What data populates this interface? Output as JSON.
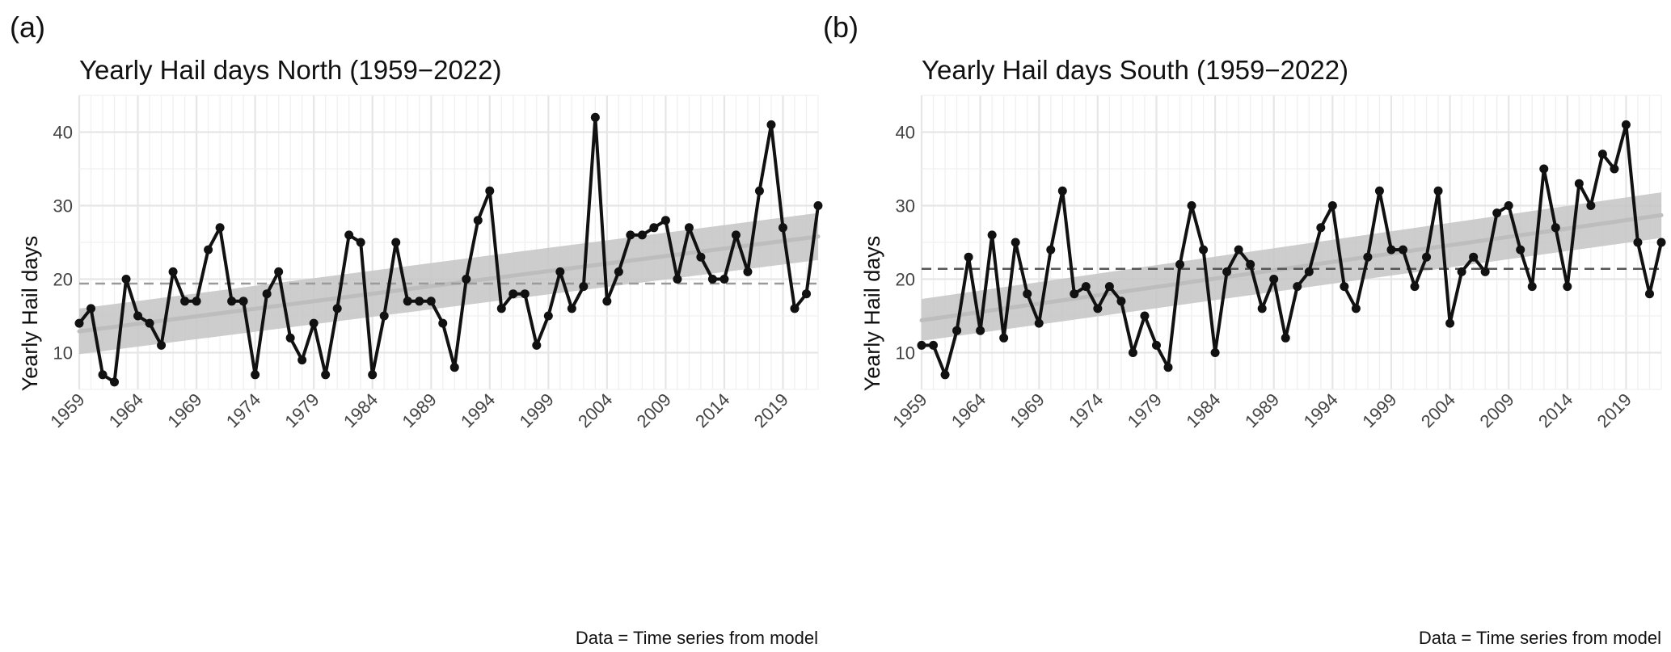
{
  "chart_data": [
    {
      "type": "line",
      "panel_label": "(a)",
      "title": "Yearly Hail days North (1959−2022)",
      "xlabel": "",
      "ylabel": "Yearly Hail days",
      "caption": "Data = Time series from model",
      "xlim": [
        1959,
        2022
      ],
      "ylim": [
        5,
        45
      ],
      "x_ticks": [
        1959,
        1964,
        1969,
        1974,
        1979,
        1984,
        1989,
        1994,
        1999,
        2004,
        2009,
        2014,
        2019
      ],
      "y_ticks": [
        10,
        20,
        30,
        40
      ],
      "x": [
        1959,
        1960,
        1961,
        1962,
        1963,
        1964,
        1965,
        1966,
        1967,
        1968,
        1969,
        1970,
        1971,
        1972,
        1973,
        1974,
        1975,
        1976,
        1977,
        1978,
        1979,
        1980,
        1981,
        1982,
        1983,
        1984,
        1985,
        1986,
        1987,
        1988,
        1989,
        1990,
        1991,
        1992,
        1993,
        1994,
        1995,
        1996,
        1997,
        1998,
        1999,
        2000,
        2001,
        2002,
        2003,
        2004,
        2005,
        2006,
        2007,
        2008,
        2009,
        2010,
        2011,
        2012,
        2013,
        2014,
        2015,
        2016,
        2017,
        2018,
        2019,
        2020,
        2021,
        2022
      ],
      "series": [
        {
          "name": "Yearly Hail days",
          "values": [
            14,
            16,
            7,
            6,
            20,
            15,
            14,
            11,
            21,
            17,
            17,
            24,
            27,
            17,
            17,
            7,
            18,
            21,
            12,
            9,
            14,
            7,
            16,
            26,
            25,
            7,
            15,
            25,
            17,
            17,
            17,
            14,
            8,
            20,
            28,
            32,
            16,
            18,
            18,
            11,
            15,
            21,
            16,
            19,
            42,
            17,
            21,
            26,
            26,
            27,
            28,
            20,
            27,
            23,
            20,
            20,
            26,
            21,
            32,
            41,
            27,
            16,
            18,
            30
          ]
        }
      ],
      "mean_line": 19.4,
      "trend": {
        "start": [
          1959,
          12.9
        ],
        "end": [
          2022,
          25.8
        ]
      },
      "confidence_band": {
        "start": [
          9.8,
          16.0
        ],
        "end": [
          22.6,
          29.0
        ]
      },
      "colors": {
        "line": "#111111",
        "trend": "#bdbdbd",
        "band": "#c4c4c4",
        "mean": "#9a9a9a"
      }
    },
    {
      "type": "line",
      "panel_label": "(b)",
      "title": "Yearly Hail days South (1959−2022)",
      "xlabel": "",
      "ylabel": "Yearly Hail days",
      "caption": "Data = Time series from model",
      "xlim": [
        1959,
        2022
      ],
      "ylim": [
        5,
        45
      ],
      "x_ticks": [
        1959,
        1964,
        1969,
        1974,
        1979,
        1984,
        1989,
        1994,
        1999,
        2004,
        2009,
        2014,
        2019
      ],
      "y_ticks": [
        10,
        20,
        30,
        40
      ],
      "x": [
        1959,
        1960,
        1961,
        1962,
        1963,
        1964,
        1965,
        1966,
        1967,
        1968,
        1969,
        1970,
        1971,
        1972,
        1973,
        1974,
        1975,
        1976,
        1977,
        1978,
        1979,
        1980,
        1981,
        1982,
        1983,
        1984,
        1985,
        1986,
        1987,
        1988,
        1989,
        1990,
        1991,
        1992,
        1993,
        1994,
        1995,
        1996,
        1997,
        1998,
        1999,
        2000,
        2001,
        2002,
        2003,
        2004,
        2005,
        2006,
        2007,
        2008,
        2009,
        2010,
        2011,
        2012,
        2013,
        2014,
        2015,
        2016,
        2017,
        2018,
        2019,
        2020,
        2021,
        2022
      ],
      "series": [
        {
          "name": "Yearly Hail days",
          "values": [
            11,
            11,
            7,
            13,
            23,
            13,
            26,
            12,
            25,
            18,
            14,
            24,
            32,
            18,
            19,
            16,
            19,
            17,
            10,
            15,
            11,
            8,
            22,
            30,
            24,
            10,
            21,
            24,
            22,
            16,
            20,
            12,
            19,
            21,
            27,
            30,
            19,
            16,
            23,
            32,
            24,
            24,
            19,
            23,
            32,
            14,
            21,
            23,
            21,
            29,
            30,
            24,
            19,
            35,
            27,
            19,
            33,
            30,
            37,
            35,
            41,
            25,
            18,
            25
          ]
        }
      ],
      "mean_line": 21.4,
      "trend": {
        "start": [
          1959,
          14.4
        ],
        "end": [
          2022,
          28.7
        ]
      },
      "confidence_band": {
        "start": [
          11.6,
          17.3
        ],
        "end": [
          25.6,
          31.8
        ]
      },
      "colors": {
        "line": "#111111",
        "trend": "#bdbdbd",
        "band": "#c4c4c4",
        "mean": "#555555"
      }
    }
  ]
}
